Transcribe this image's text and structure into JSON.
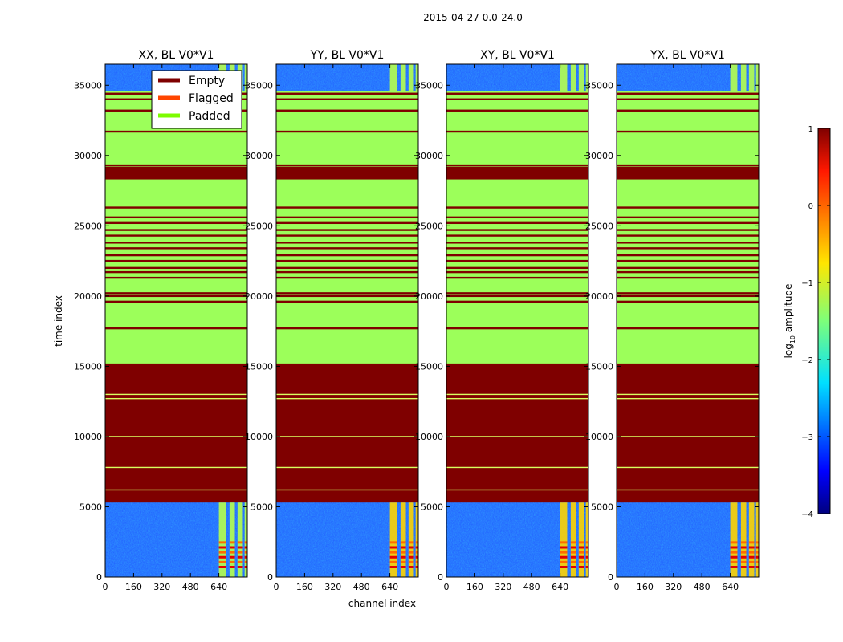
{
  "chart_data": {
    "type": "heatmap",
    "suptitle": "2015-04-27 0.0-24.0",
    "xlabel": "channel index",
    "ylabel": "time index",
    "xlim": [
      0,
      800
    ],
    "ylim": [
      0,
      36500
    ],
    "xticks": [
      "0",
      "160",
      "320",
      "480",
      "640"
    ],
    "xtick_values": [
      0,
      160,
      320,
      480,
      640
    ],
    "yticks": [
      "0",
      "5000",
      "10000",
      "15000",
      "20000",
      "25000",
      "30000",
      "35000"
    ],
    "ytick_values": [
      0,
      5000,
      10000,
      15000,
      20000,
      25000,
      30000,
      35000
    ],
    "panels": [
      {
        "title": "XX, BL V0*V1"
      },
      {
        "title": "YY, BL V0*V1"
      },
      {
        "title": "XY, BL V0*V1"
      },
      {
        "title": "YX, BL V0*V1"
      }
    ],
    "legend": [
      {
        "label": "Empty",
        "color": "#7f0000"
      },
      {
        "label": "Flagged",
        "color": "#ff4500"
      },
      {
        "label": "Padded",
        "color": "#7cfc00"
      }
    ],
    "colorbar": {
      "label": "log",
      "label_sub": "10",
      "label_rest": " amplitude",
      "min": -4,
      "max": 1,
      "ticks": [
        "1",
        "0",
        "−1",
        "−2",
        "−3",
        "−4"
      ],
      "tick_values": [
        1,
        0,
        -1,
        -2,
        -3,
        -4
      ]
    },
    "data_regions": [
      [
        0,
        5300
      ],
      [
        34600,
        36500
      ]
    ],
    "padded_bands": [
      [
        15200,
        28300
      ],
      [
        29200,
        34600
      ]
    ],
    "empty_lines_in_padded": [
      17700,
      19600,
      20000,
      20200,
      21300,
      21700,
      22000,
      22500,
      22900,
      23400,
      23800,
      24300,
      24700,
      25200,
      25600,
      26300,
      29300,
      31700,
      33200,
      34000,
      34400
    ],
    "padded_lines_in_empty": [
      6200,
      7800,
      10000,
      12700,
      13000
    ],
    "active_channel_columns": [
      [
        640,
        680
      ],
      [
        700,
        730
      ],
      [
        745,
        775
      ],
      [
        785,
        810
      ]
    ],
    "colors": {
      "empty": "#7f0000",
      "padded": "#9cff5a",
      "noise": "#1f5cff"
    }
  }
}
